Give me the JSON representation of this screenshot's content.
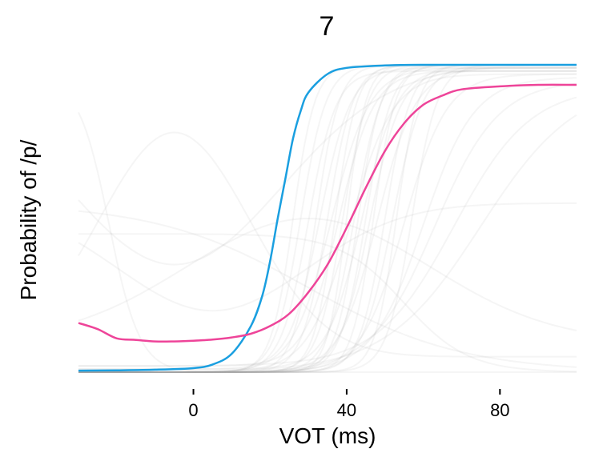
{
  "chart_data": {
    "type": "line",
    "title": "7",
    "xlabel": "VOT (ms)",
    "ylabel": "Probability of /p/",
    "xlim": [
      -30,
      100
    ],
    "ylim": [
      0,
      1
    ],
    "x_ticks": [
      0,
      40,
      80
    ],
    "y_ticks": [],
    "grid": false,
    "legend": "none",
    "series": [
      {
        "color": "#1a9fe0",
        "x": [
          -30,
          -20,
          -10,
          0,
          5,
          10,
          15,
          18,
          20,
          22,
          24,
          26,
          28,
          30,
          35,
          40,
          50,
          60,
          80,
          100
        ],
        "y": [
          0.005,
          0.006,
          0.008,
          0.013,
          0.025,
          0.06,
          0.15,
          0.25,
          0.36,
          0.5,
          0.63,
          0.76,
          0.85,
          0.91,
          0.97,
          0.99,
          0.998,
          1.0,
          1.0,
          1.0
        ]
      },
      {
        "color": "#ee4499",
        "x": [
          -30,
          -25,
          -20,
          -15,
          -10,
          -5,
          0,
          5,
          10,
          15,
          20,
          25,
          30,
          35,
          40,
          45,
          50,
          55,
          60,
          65,
          70,
          80,
          90,
          100
        ],
        "y": [
          0.16,
          0.14,
          0.11,
          0.105,
          0.1,
          0.1,
          0.102,
          0.106,
          0.113,
          0.125,
          0.15,
          0.19,
          0.26,
          0.35,
          0.47,
          0.6,
          0.72,
          0.81,
          0.87,
          0.9,
          0.92,
          0.93,
          0.935,
          0.935
        ]
      }
    ],
    "background_curves": [
      {
        "type": "rise",
        "mid": 26,
        "slope": 0.35,
        "lo": 0.0,
        "hi": 1.0
      },
      {
        "type": "rise",
        "mid": 28,
        "slope": 0.3,
        "lo": 0.0,
        "hi": 1.0
      },
      {
        "type": "rise",
        "mid": 30,
        "slope": 0.28,
        "lo": 0.0,
        "hi": 0.98
      },
      {
        "type": "rise",
        "mid": 32,
        "slope": 0.33,
        "lo": 0.0,
        "hi": 1.0
      },
      {
        "type": "rise",
        "mid": 33,
        "slope": 0.25,
        "lo": 0.01,
        "hi": 0.99
      },
      {
        "type": "rise",
        "mid": 35,
        "slope": 0.3,
        "lo": 0.0,
        "hi": 1.0
      },
      {
        "type": "rise",
        "mid": 36,
        "slope": 0.2,
        "lo": 0.0,
        "hi": 0.99
      },
      {
        "type": "rise",
        "mid": 37,
        "slope": 0.35,
        "lo": 0.0,
        "hi": 1.0
      },
      {
        "type": "rise",
        "mid": 38,
        "slope": 0.22,
        "lo": 0.02,
        "hi": 0.98
      },
      {
        "type": "rise",
        "mid": 39,
        "slope": 0.3,
        "lo": 0.0,
        "hi": 1.0
      },
      {
        "type": "rise",
        "mid": 40,
        "slope": 0.4,
        "lo": 0.0,
        "hi": 1.0
      },
      {
        "type": "rise",
        "mid": 41,
        "slope": 0.18,
        "lo": 0.0,
        "hi": 0.97
      },
      {
        "type": "rise",
        "mid": 42,
        "slope": 0.28,
        "lo": 0.0,
        "hi": 1.0
      },
      {
        "type": "rise",
        "mid": 43,
        "slope": 0.33,
        "lo": 0.0,
        "hi": 1.0
      },
      {
        "type": "rise",
        "mid": 44,
        "slope": 0.22,
        "lo": 0.01,
        "hi": 0.99
      },
      {
        "type": "rise",
        "mid": 45,
        "slope": 0.3,
        "lo": 0.0,
        "hi": 1.0
      },
      {
        "type": "rise",
        "mid": 46,
        "slope": 0.25,
        "lo": 0.0,
        "hi": 0.98
      },
      {
        "type": "rise",
        "mid": 47,
        "slope": 0.35,
        "lo": 0.0,
        "hi": 1.0
      },
      {
        "type": "rise",
        "mid": 48,
        "slope": 0.2,
        "lo": 0.0,
        "hi": 0.99
      },
      {
        "type": "rise",
        "mid": 50,
        "slope": 0.3,
        "lo": 0.0,
        "hi": 1.0
      },
      {
        "type": "rise",
        "mid": 52,
        "slope": 0.25,
        "lo": 0.0,
        "hi": 1.0
      },
      {
        "type": "rise",
        "mid": 53,
        "slope": 0.35,
        "lo": 0.0,
        "hi": 1.0
      },
      {
        "type": "rise",
        "mid": 55,
        "slope": 0.18,
        "lo": 0.0,
        "hi": 0.97
      },
      {
        "type": "rise",
        "mid": 57,
        "slope": 0.3,
        "lo": 0.0,
        "hi": 1.0
      },
      {
        "type": "rise",
        "mid": 60,
        "slope": 0.15,
        "lo": 0.0,
        "hi": 0.96
      },
      {
        "type": "rise",
        "mid": 63,
        "slope": 0.12,
        "lo": 0.0,
        "hi": 0.95
      },
      {
        "type": "rise",
        "mid": 68,
        "slope": 0.1,
        "lo": 0.02,
        "hi": 0.93
      },
      {
        "type": "rise",
        "mid": 75,
        "slope": 0.08,
        "lo": 0.0,
        "hi": 0.95
      },
      {
        "type": "fall",
        "mid": -22,
        "slope": 0.25,
        "lo": 0.0,
        "hi": 0.96
      },
      {
        "type": "fall",
        "mid": 55,
        "slope": 0.12,
        "lo": 0.0,
        "hi": 0.45
      },
      {
        "type": "fall",
        "mid": 30,
        "slope": 0.05,
        "lo": 0.0,
        "hi": 0.55
      },
      {
        "type": "bump",
        "center": -5,
        "width": 28,
        "lo": 0.05,
        "hi": 0.78
      },
      {
        "type": "bump",
        "center": 30,
        "width": 45,
        "lo": 0.1,
        "hi": 0.5
      },
      {
        "type": "dip",
        "center": 5,
        "width": 35,
        "lo": 0.2,
        "hi": 0.55
      },
      {
        "type": "dip",
        "center": -5,
        "width": 40,
        "lo": 0.35,
        "hi": 1.0
      }
    ],
    "colors": {
      "axis": "#000000",
      "background_curve": "#9a9a9a"
    }
  }
}
